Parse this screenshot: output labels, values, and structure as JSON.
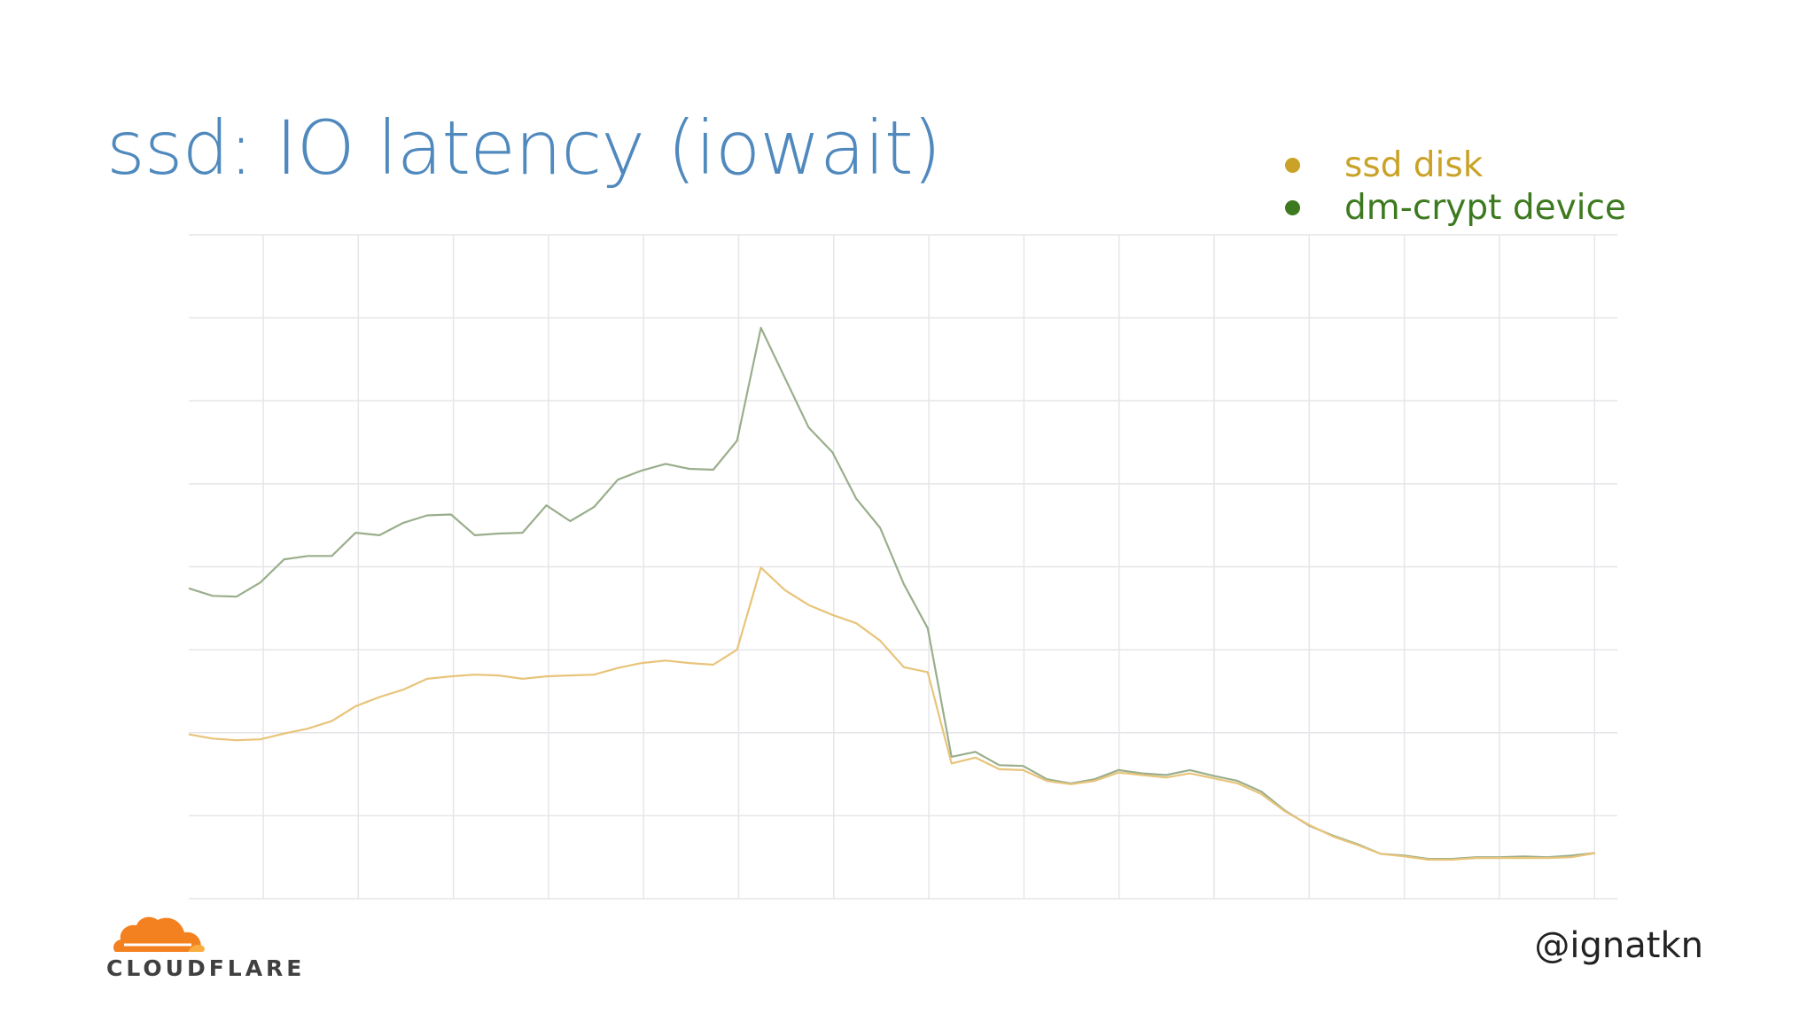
{
  "slide": {
    "title": "ssd: IO latency (iowait)",
    "handle": "@ignatkn",
    "logo_text": "CLOUDFLARE",
    "logo_icon": "cloud-icon",
    "title_color": "#4f89bd"
  },
  "chart_data": {
    "type": "line",
    "title": "",
    "xlabel": "",
    "ylabel": "",
    "grid": true,
    "legend_position": "top-right",
    "ylim": [
      0,
      800
    ],
    "x": [
      0,
      1,
      2,
      3,
      4,
      5,
      6,
      7,
      8,
      9,
      10,
      11,
      12,
      13,
      14,
      15,
      16,
      17,
      18,
      19,
      20,
      21,
      22,
      23,
      24,
      25,
      26,
      27,
      28,
      29,
      30,
      31,
      32,
      33,
      34,
      35,
      36,
      37,
      38,
      39,
      40,
      41,
      42,
      43,
      44,
      45,
      46,
      47,
      48,
      49,
      50,
      51,
      52,
      53,
      54,
      55,
      56,
      57,
      58,
      59
    ],
    "series": [
      {
        "name": "ssd disk",
        "color": "#c9a227",
        "values": [
          198,
          193,
          191,
          192,
          199,
          205,
          214,
          232,
          243,
          252,
          265,
          268,
          270,
          269,
          265,
          268,
          269,
          270,
          278,
          284,
          287,
          284,
          282,
          300,
          399,
          372,
          354,
          342,
          332,
          311,
          279,
          273,
          163,
          170,
          156,
          155,
          142,
          138,
          142,
          152,
          149,
          146,
          151,
          145,
          139,
          126,
          105,
          89,
          75,
          65,
          54,
          51,
          47,
          47,
          49,
          49,
          49,
          49,
          50,
          55
        ]
      },
      {
        "name": "dm-crypt device",
        "color": "#3d7a1f",
        "values": [
          374,
          365,
          364,
          381,
          409,
          413,
          413,
          441,
          438,
          453,
          462,
          463,
          438,
          440,
          441,
          474,
          455,
          472,
          505,
          516,
          524,
          518,
          517,
          552,
          688,
          628,
          568,
          538,
          482,
          447,
          379,
          326,
          171,
          177,
          161,
          160,
          144,
          139,
          144,
          155,
          151,
          149,
          155,
          148,
          142,
          129,
          106,
          88,
          76,
          66,
          54,
          52,
          48,
          48,
          50,
          50,
          51,
          50,
          52,
          55
        ]
      }
    ]
  }
}
